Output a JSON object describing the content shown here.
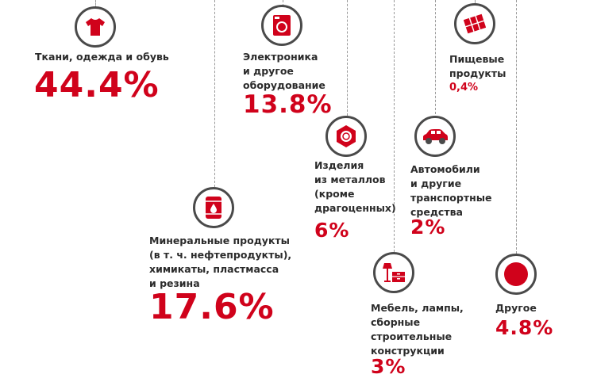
{
  "categories": [
    {
      "id": "textiles",
      "label": "Ткани, одежда и обувь",
      "value": "44.4%",
      "icon": "tshirt-icon"
    },
    {
      "id": "electronics",
      "label": "Электроника\nи другое\nоборудование",
      "value": "13.8%",
      "icon": "washing-machine-icon"
    },
    {
      "id": "food",
      "label": "Пищевые\nпродукты",
      "value": "0,4%",
      "icon": "chocolate-bar-icon"
    },
    {
      "id": "metals",
      "label": "Изделия\nиз металлов\n(кроме\nдрагоценных)",
      "value": "6%",
      "icon": "hex-nut-icon"
    },
    {
      "id": "vehicles",
      "label": "Автомобили\nи другие\nтранспортные\nсредства",
      "value": "2%",
      "icon": "car-icon"
    },
    {
      "id": "minerals",
      "label": "Минеральные продукты\n(в т. ч. нефтепродукты),\nхимикаты, пластмасса\nи резина",
      "value": "17.6%",
      "icon": "oil-barrel-icon"
    },
    {
      "id": "furniture",
      "label": "Мебель, лампы,\nсборные\nстроительные\nконструкции",
      "value": "3%",
      "icon": "furniture-lamp-icon"
    },
    {
      "id": "other",
      "label": "Другое",
      "value": "4.8%",
      "icon": "dot-icon"
    }
  ],
  "colors": {
    "accent": "#d0021b",
    "icon_ring": "#4a4a4a",
    "text": "#2b2b2b",
    "line": "#9a9a9a"
  }
}
